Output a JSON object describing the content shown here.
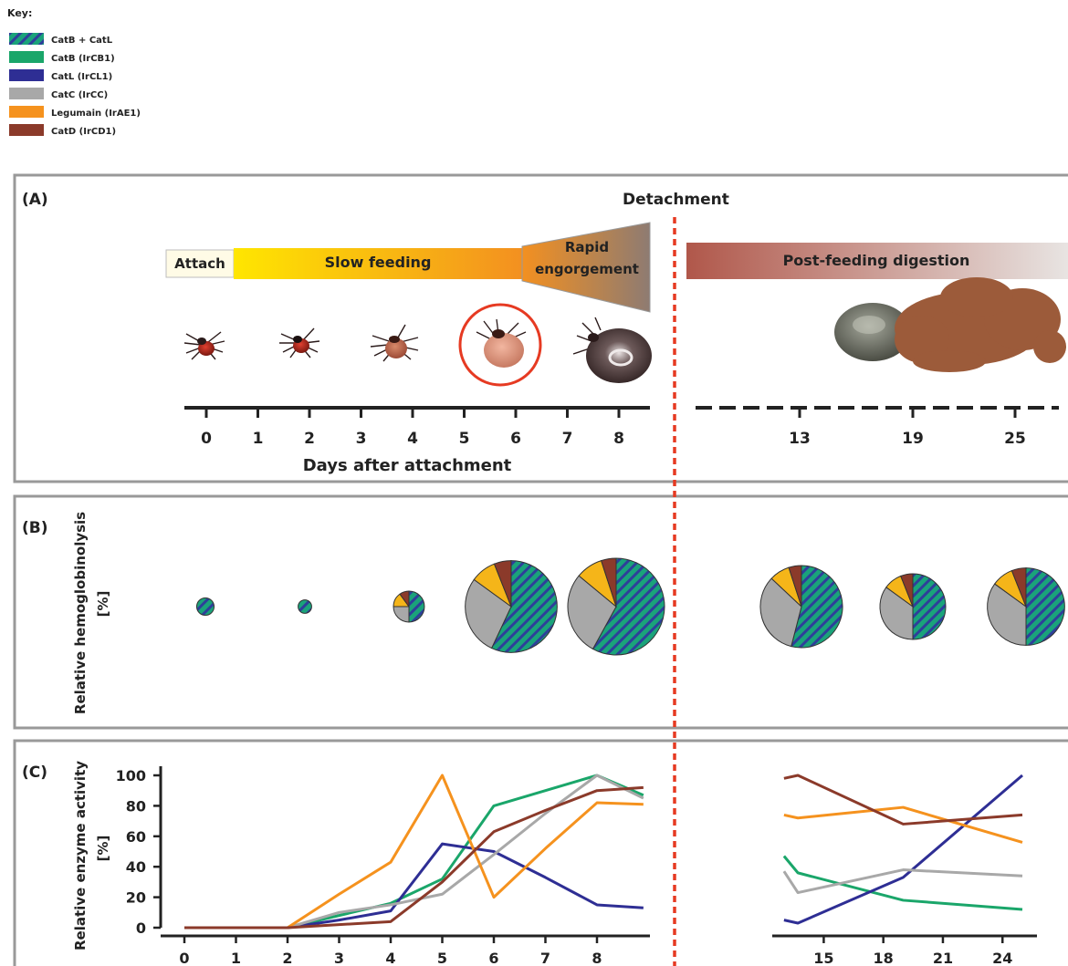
{
  "key": {
    "title": "Key:",
    "items": [
      {
        "label": "CatB + CatL",
        "color": "#1aa37a",
        "color2": "#2e3f9a",
        "striped": true
      },
      {
        "label": "CatB (IrCB1)",
        "color": "#1aa66a"
      },
      {
        "label": "CatL (IrCL1)",
        "color": "#2e2e94"
      },
      {
        "label": "CatC (IrCC)",
        "color": "#a8a8a8"
      },
      {
        "label": "Legumain (IrAE1)",
        "color": "#f5921e"
      },
      {
        "label": "CatD (IrCD1)",
        "color": "#8b3a2a"
      }
    ]
  },
  "panelA": {
    "label": "(A)",
    "detachment": "Detachment",
    "stages": {
      "attach": "Attach",
      "slow": "Slow feeding",
      "rapid_1": "Rapid",
      "rapid_2": "engorgement",
      "post": "Post-feeding digestion"
    },
    "days_left": [
      "0",
      "1",
      "2",
      "3",
      "4",
      "5",
      "6",
      "7",
      "8"
    ],
    "days_right": [
      "13",
      "19",
      "25"
    ],
    "axis_title": "Days after attachment"
  },
  "panelB": {
    "label": "(B)",
    "ylabel_1": "Relative hemoglobinolysis",
    "ylabel_2": "[%]",
    "pies": [
      {
        "day": 0,
        "size": 0.18,
        "slices": [
          {
            "name": "CatB + CatL",
            "value": 100
          }
        ]
      },
      {
        "day": 2,
        "size": 0.14,
        "slices": [
          {
            "name": "CatB + CatL",
            "value": 100
          }
        ]
      },
      {
        "day": 4,
        "size": 0.32,
        "slices": [
          {
            "name": "CatB + CatL",
            "value": 50
          },
          {
            "name": "CatC",
            "value": 25
          },
          {
            "name": "Legumain",
            "value": 15
          },
          {
            "name": "CatD",
            "value": 10
          }
        ]
      },
      {
        "day": 6,
        "size": 0.95,
        "slices": [
          {
            "name": "CatB + CatL",
            "value": 57
          },
          {
            "name": "CatC",
            "value": 28
          },
          {
            "name": "Legumain",
            "value": 9
          },
          {
            "name": "CatD",
            "value": 6
          }
        ]
      },
      {
        "day": 8,
        "size": 1.0,
        "slices": [
          {
            "name": "CatB + CatL",
            "value": 58
          },
          {
            "name": "CatC",
            "value": 28
          },
          {
            "name": "Legumain",
            "value": 9
          },
          {
            "name": "CatD",
            "value": 5
          }
        ]
      },
      {
        "day": 13,
        "size": 0.85,
        "slices": [
          {
            "name": "CatB + CatL",
            "value": 54
          },
          {
            "name": "CatC",
            "value": 33
          },
          {
            "name": "Legumain",
            "value": 8
          },
          {
            "name": "CatD",
            "value": 5
          }
        ]
      },
      {
        "day": 19,
        "size": 0.68,
        "slices": [
          {
            "name": "CatB + CatL",
            "value": 50
          },
          {
            "name": "CatC",
            "value": 35
          },
          {
            "name": "Legumain",
            "value": 9
          },
          {
            "name": "CatD",
            "value": 6
          }
        ]
      },
      {
        "day": 25,
        "size": 0.8,
        "slices": [
          {
            "name": "CatB + CatL",
            "value": 50
          },
          {
            "name": "CatC",
            "value": 35
          },
          {
            "name": "Legumain",
            "value": 9
          },
          {
            "name": "CatD",
            "value": 6
          }
        ]
      }
    ]
  },
  "panelC": {
    "label": "(C)",
    "ylabel_1": "Relative enzyme activity",
    "ylabel_2": "[%]"
  },
  "chart_data": {
    "type": "line",
    "title": "",
    "ylim": [
      0,
      100
    ],
    "yticks": [
      "0",
      "20",
      "40",
      "60",
      "80",
      "100"
    ],
    "left": {
      "xticks": [
        "0",
        "1",
        "2",
        "3",
        "4",
        "5",
        "6",
        "7",
        "8"
      ],
      "series": [
        {
          "name": "CatB (IrCB1)",
          "color": "#1aa66a",
          "x": [
            0,
            1,
            2,
            3,
            4,
            5,
            6,
            7,
            8,
            8.9
          ],
          "y": [
            0,
            0,
            0,
            8,
            16,
            32,
            80,
            90,
            100,
            87
          ]
        },
        {
          "name": "CatL (IrCL1)",
          "color": "#2e2e94",
          "x": [
            0,
            1,
            2,
            3,
            4,
            5,
            6,
            7,
            8,
            8.9
          ],
          "y": [
            0,
            0,
            0,
            5,
            11,
            55,
            50,
            33,
            15,
            13
          ]
        },
        {
          "name": "CatC (IrCC)",
          "color": "#a8a8a8",
          "x": [
            0,
            1,
            2,
            3,
            4,
            5,
            6,
            7,
            8,
            8.9
          ],
          "y": [
            0,
            0,
            0,
            10,
            15,
            22,
            48,
            75,
            100,
            85
          ]
        },
        {
          "name": "Legumain (IrAE1)",
          "color": "#f5921e",
          "x": [
            0,
            1,
            2,
            3,
            4,
            5,
            6,
            7,
            8,
            8.9
          ],
          "y": [
            0,
            0,
            0,
            22,
            43,
            100,
            20,
            52,
            82,
            81
          ]
        },
        {
          "name": "CatD (IrCD1)",
          "color": "#8b3a2a",
          "x": [
            0,
            1,
            2,
            3,
            4,
            5,
            6,
            7,
            8,
            8.9
          ],
          "y": [
            0,
            0,
            0,
            2,
            4,
            30,
            63,
            77,
            90,
            92
          ]
        }
      ]
    },
    "right": {
      "xticks": [
        "15",
        "18",
        "21",
        "24"
      ],
      "xrange": [
        12.5,
        25
      ],
      "series": [
        {
          "name": "CatB (IrCB1)",
          "color": "#1aa66a",
          "x": [
            13,
            13.7,
            19,
            25
          ],
          "y": [
            47,
            36,
            18,
            12
          ]
        },
        {
          "name": "CatL (IrCL1)",
          "color": "#2e2e94",
          "x": [
            13,
            13.7,
            19,
            25
          ],
          "y": [
            5,
            3,
            33,
            100
          ]
        },
        {
          "name": "CatC (IrCC)",
          "color": "#a8a8a8",
          "x": [
            13,
            13.7,
            19,
            25
          ],
          "y": [
            37,
            23,
            38,
            34
          ]
        },
        {
          "name": "Legumain (IrAE1)",
          "color": "#f5921e",
          "x": [
            13,
            13.7,
            19,
            25
          ],
          "y": [
            74,
            72,
            79,
            56
          ]
        },
        {
          "name": "CatD (IrCD1)",
          "color": "#8b3a2a",
          "x": [
            13,
            13.7,
            19,
            25
          ],
          "y": [
            98,
            100,
            68,
            74
          ]
        }
      ]
    }
  }
}
